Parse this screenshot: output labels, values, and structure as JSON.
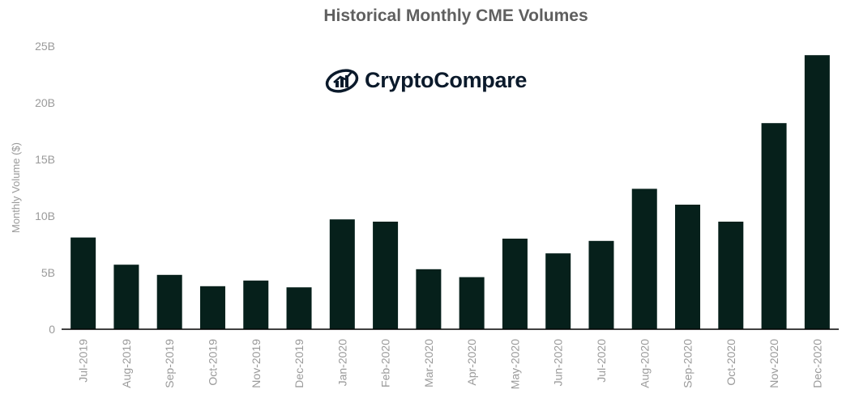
{
  "chart_data": {
    "type": "bar",
    "title": "Historical Monthly CME Volumes",
    "ylabel": "Monthly Volume ($)",
    "xlabel": "",
    "ylim": [
      0,
      25
    ],
    "yticks": [
      0,
      5,
      10,
      15,
      20,
      25
    ],
    "ytick_labels": [
      "0",
      "5B",
      "10B",
      "15B",
      "20B",
      "25B"
    ],
    "grid": false,
    "bar_color": "#06201b",
    "categories": [
      "Jul-2019",
      "Aug-2019",
      "Sep-2019",
      "Oct-2019",
      "Nov-2019",
      "Dec-2019",
      "Jan-2020",
      "Feb-2020",
      "Mar-2020",
      "Apr-2020",
      "May-2020",
      "Jun-2020",
      "Jul-2020",
      "Aug-2020",
      "Sep-2020",
      "Oct-2020",
      "Nov-2020",
      "Dec-2020"
    ],
    "values": [
      8.1,
      5.7,
      4.8,
      3.8,
      4.3,
      3.7,
      9.7,
      9.5,
      5.3,
      4.6,
      8.0,
      6.7,
      7.8,
      12.4,
      11.0,
      9.5,
      18.2,
      24.2
    ],
    "unit": "B"
  },
  "logo": {
    "text": "CryptoCompare",
    "icon": "chart-cloud-icon",
    "color": "#0b1a2b"
  }
}
